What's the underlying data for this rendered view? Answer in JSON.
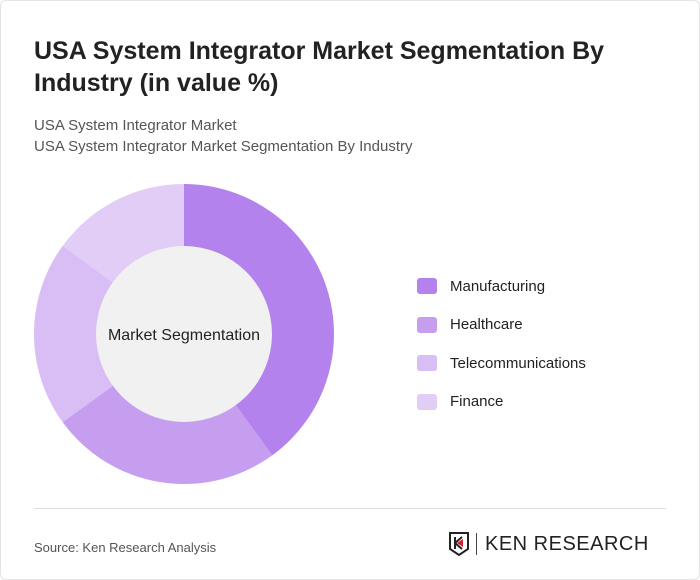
{
  "title": "USA System Integrator Market Segmentation By Industry (in value %)",
  "subtitle1": "USA System Integrator Market",
  "subtitle2": "USA System Integrator Market Segmentation By Industry",
  "source": "Source: Ken Research Analysis",
  "logo_text": "KEN RESEARCH",
  "chart_data": {
    "type": "pie",
    "variant": "donut",
    "center_label": "Market Segmentation",
    "categories": [
      "Manufacturing",
      "Healthcare",
      "Telecommunications",
      "Finance"
    ],
    "values": [
      40,
      25,
      20,
      15
    ],
    "colors": [
      "#b482ec",
      "#c69ef0",
      "#d9bdf5",
      "#e2cdf6"
    ],
    "legend_placement": "right"
  }
}
